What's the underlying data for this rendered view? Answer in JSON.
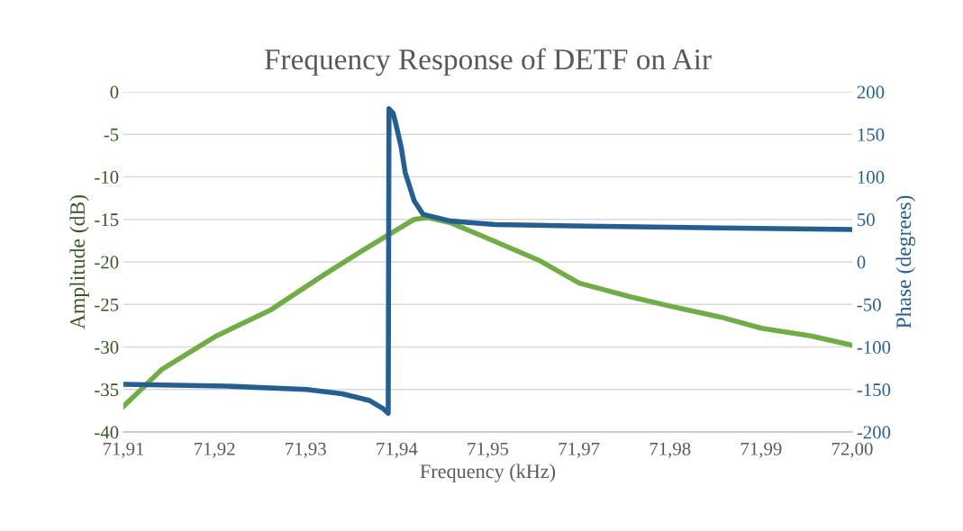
{
  "chart_data": {
    "type": "line",
    "title": "Frequency Response of DETF on Air",
    "xlabel": "Frequency (kHz)",
    "ylabel": "Amplitude (dB)",
    "y2label": "Phase (degrees)",
    "xlim": [
      71.91,
      72.0
    ],
    "xticks": [
      {
        "value": 71.91,
        "label": "71,91"
      },
      {
        "value": 71.92125,
        "label": "71,92"
      },
      {
        "value": 71.9325,
        "label": "71,93"
      },
      {
        "value": 71.94375,
        "label": "71,94"
      },
      {
        "value": 71.955,
        "label": "71,95"
      },
      {
        "value": 71.96625,
        "label": "71,97"
      },
      {
        "value": 71.9775,
        "label": "71,98"
      },
      {
        "value": 71.98875,
        "label": "71,99"
      },
      {
        "value": 72.0,
        "label": "72,00"
      }
    ],
    "ylim": [
      -40,
      0
    ],
    "yticks": [
      -40,
      -35,
      -30,
      -25,
      -20,
      -15,
      -10,
      -5,
      0
    ],
    "y2lim": [
      -200,
      200
    ],
    "y2ticks": [
      -200,
      -150,
      -100,
      -50,
      0,
      50,
      100,
      150,
      200
    ],
    "grid": "y",
    "marker": "none",
    "line_style": "solid",
    "series": [
      {
        "color": "#70ad47",
        "x": [
          71.91,
          71.9148,
          71.9215,
          71.9281,
          71.9348,
          71.9393,
          71.9426,
          71.9459,
          71.9476,
          71.9504,
          71.9549,
          71.9615,
          71.9663,
          71.9726,
          71.9775,
          71.9838,
          71.9888,
          71.9949,
          72.0
        ],
        "values": [
          -37,
          -32.6,
          -28.7,
          -25.7,
          -21.5,
          -18.8,
          -16.9,
          -15,
          -14.8,
          -15.4,
          -17.2,
          -19.9,
          -22.5,
          -24.1,
          -25.2,
          -26.5,
          -27.8,
          -28.7,
          -29.8
        ]
      },
      {
        "color": "#255e91",
        "axis": "y2",
        "x": [
          71.91,
          71.9226,
          71.9326,
          71.937,
          71.9404,
          71.942,
          71.9427,
          71.9428,
          71.9433,
          71.9437,
          71.9443,
          71.9448,
          71.9459,
          71.947,
          71.9504,
          71.9559,
          71.9671,
          71.9838,
          72.0
        ],
        "values": [
          -144,
          -146,
          -150,
          -155,
          -163,
          -172,
          -178,
          180,
          175,
          160,
          135,
          105,
          72,
          56,
          48,
          44,
          42,
          40,
          38
        ]
      }
    ]
  }
}
